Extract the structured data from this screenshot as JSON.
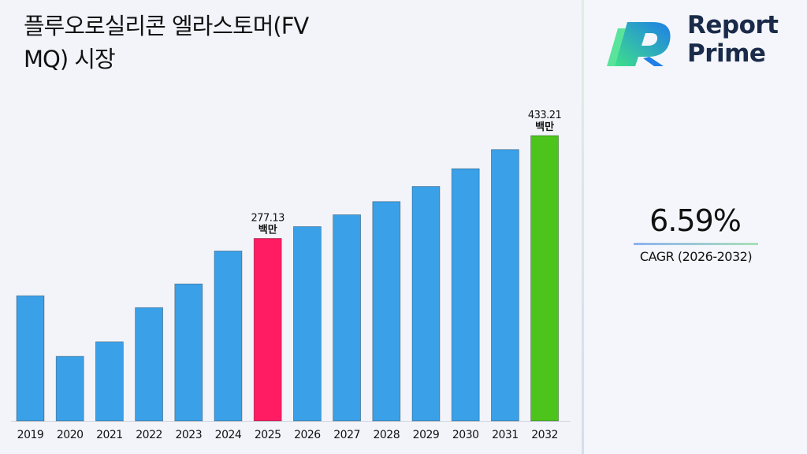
{
  "header": {
    "title": "플루오로실리콘 엘라스토머(FV\nMQ) 시장"
  },
  "logo": {
    "line1": "Report",
    "line2": "Prime",
    "icon": "report-prime-logo-icon"
  },
  "cagr": {
    "value": "6.59%",
    "label": "CAGR (2026-2032)"
  },
  "colors": {
    "bar_default": "#3aa0e8",
    "bar_highlight_base": "#ff1c62",
    "bar_highlight_end": "#4cc41c"
  },
  "chart_data": {
    "type": "bar",
    "categories": [
      "2019",
      "2020",
      "2021",
      "2022",
      "2023",
      "2024",
      "2025",
      "2026",
      "2027",
      "2028",
      "2029",
      "2030",
      "2031",
      "2032"
    ],
    "values": [
      190,
      98,
      120,
      172,
      208,
      258,
      277.13,
      295,
      313,
      333,
      356,
      383,
      412,
      433.21
    ],
    "ylim": [
      0,
      440
    ],
    "data_labels": [
      {
        "category": "2025",
        "value": "277.13",
        "unit": "백만"
      },
      {
        "category": "2032",
        "value": "433.21",
        "unit": "백만"
      }
    ],
    "highlight": {
      "2025": "#ff1c62",
      "2032": "#4cc41c"
    },
    "grid": false,
    "legend": "none"
  }
}
